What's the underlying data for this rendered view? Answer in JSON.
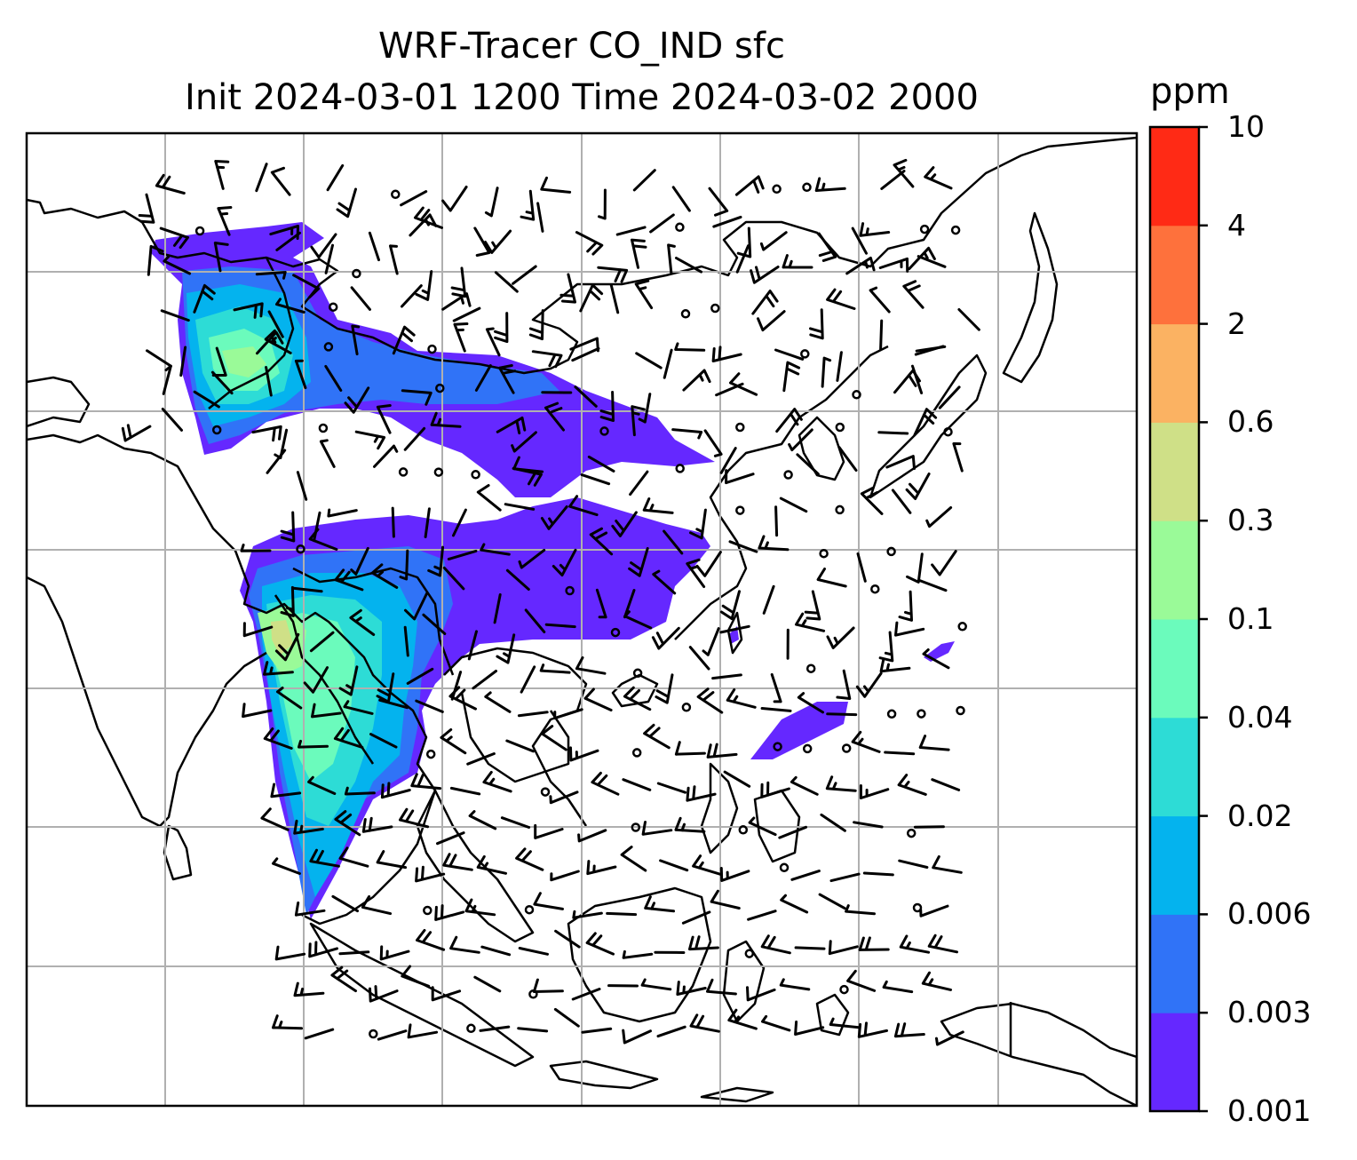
{
  "title": {
    "line1": "WRF-Tracer CO_IND sfc",
    "line2": "Init 2024-03-01 1200 Time 2024-03-02 2000"
  },
  "colorbar": {
    "unit": "ppm",
    "levels": [
      "0.001",
      "0.003",
      "0.006",
      "0.02",
      "0.04",
      "0.1",
      "0.3",
      "0.6",
      "2",
      "4",
      "10"
    ],
    "colors": [
      "#6528ff",
      "#3073f7",
      "#04b3ee",
      "#2ddcd6",
      "#6bfbbc",
      "#9afa98",
      "#cfe087",
      "#fbb262",
      "#fe713c",
      "#ff2a15"
    ]
  },
  "colors": {
    "gridline": "#b0b0b0",
    "coastline": "#000000",
    "barb": "#000000"
  }
}
